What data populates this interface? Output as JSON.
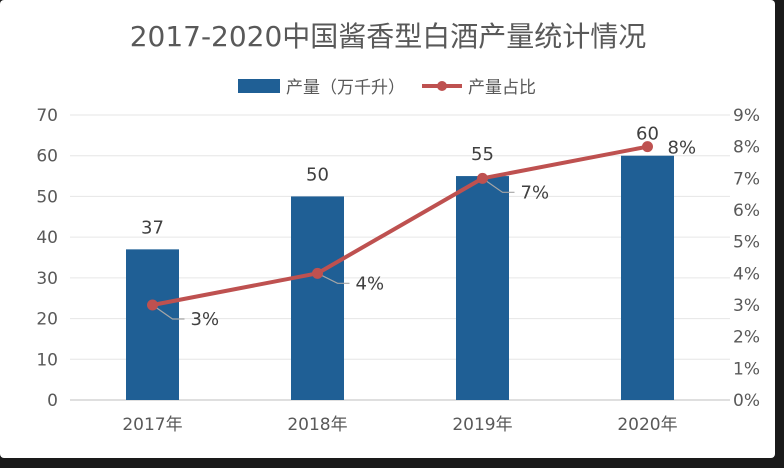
{
  "chart_data": {
    "type": "bar",
    "title": "2017-2020中国酱香型白酒产量统计情况",
    "categories": [
      "2017年",
      "2018年",
      "2019年",
      "2020年"
    ],
    "series": [
      {
        "name": "产量（万千升）",
        "type": "bar",
        "axis": "left",
        "values": [
          37,
          50,
          55,
          60
        ],
        "labels": [
          "37",
          "50",
          "55",
          "60"
        ]
      },
      {
        "name": "产量占比",
        "type": "line",
        "axis": "right",
        "values": [
          3,
          4,
          7,
          8
        ],
        "labels": [
          "3%",
          "4%",
          "7%",
          "8%"
        ]
      }
    ],
    "y_left": {
      "range": [
        0,
        70
      ],
      "ticks": [
        0,
        10,
        20,
        30,
        40,
        50,
        60,
        70
      ],
      "tick_labels": [
        "0",
        "10",
        "20",
        "30",
        "40",
        "50",
        "60",
        "70"
      ]
    },
    "y_right": {
      "range": [
        0,
        9
      ],
      "ticks": [
        0,
        1,
        2,
        3,
        4,
        5,
        6,
        7,
        8,
        9
      ],
      "tick_labels": [
        "0%",
        "1%",
        "2%",
        "3%",
        "4%",
        "5%",
        "6%",
        "7%",
        "8%",
        "9%"
      ]
    },
    "grid": true,
    "legend_position": "top",
    "colors": {
      "bar": "#1f5f95",
      "line": "#be5150",
      "text": "#595959",
      "grid": "#e6e6e6",
      "leader": "#a6a6a6"
    }
  }
}
